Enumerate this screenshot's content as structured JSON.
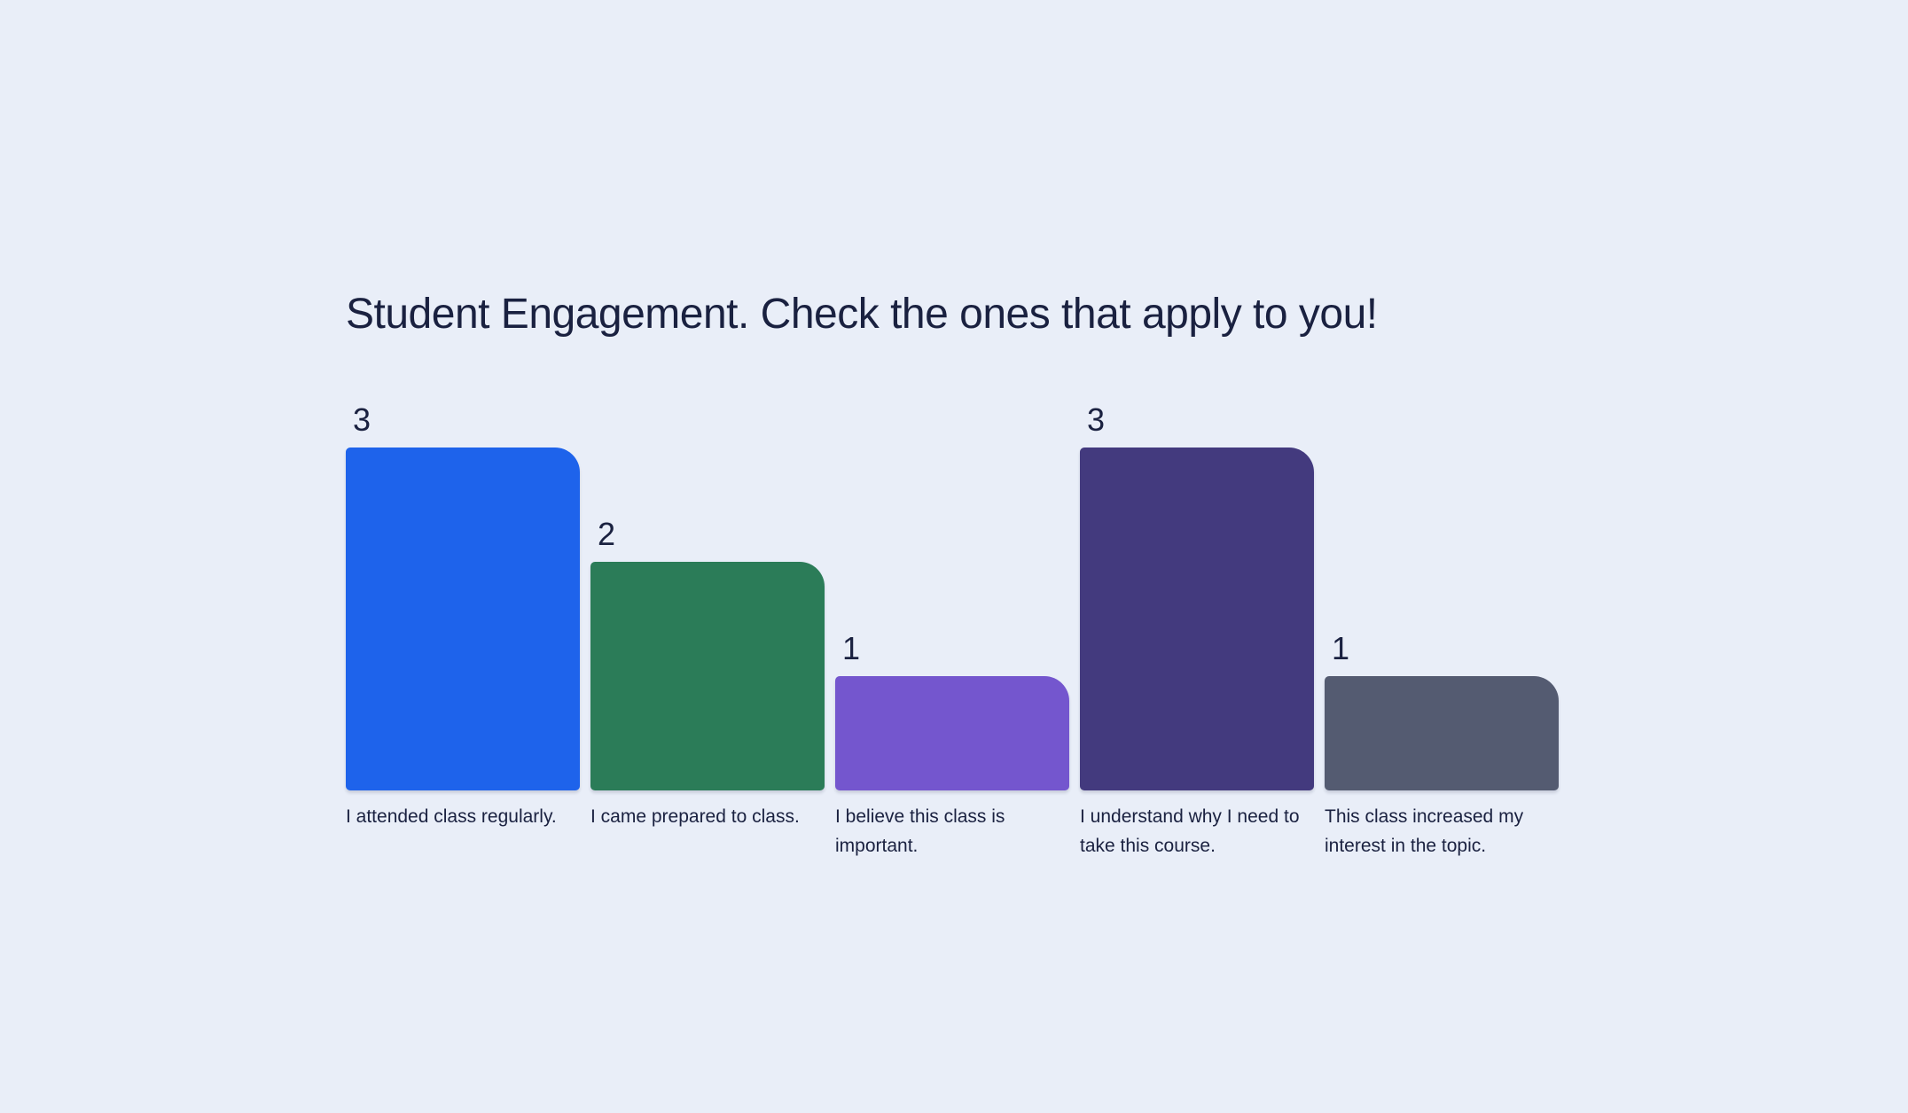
{
  "ui": {
    "background_color": "#E9EEF8",
    "text_color": "#1A2140"
  },
  "chart_data": {
    "type": "bar",
    "title": "Student Engagement. Check the ones that apply to you!",
    "categories": [
      "I attended class regularly.",
      "I came prepared to class.",
      "I believe this class is important.",
      "I understand why I need to take this course.",
      "This class increased my interest in the topic."
    ],
    "values": [
      3,
      2,
      1,
      3,
      1
    ],
    "value_labels": [
      "3",
      "2",
      "1",
      "3",
      "1"
    ],
    "bar_colors": [
      "#1E63EB",
      "#2B7C58",
      "#7456CE",
      "#433A7E",
      "#545B71"
    ],
    "category_label_lines": [
      [
        "I attended class regularly."
      ],
      [
        "I came prepared to class."
      ],
      [
        "I believe this class is",
        "important."
      ],
      [
        "I understand why I need to",
        "take this course."
      ],
      [
        "This class increased my",
        "interest in the topic."
      ]
    ],
    "xlabel": "",
    "ylabel": "",
    "ylim": [
      0,
      3
    ],
    "grid": false,
    "axes_shown": false,
    "legend": "none",
    "value_labels_position": "above-bar-left"
  }
}
